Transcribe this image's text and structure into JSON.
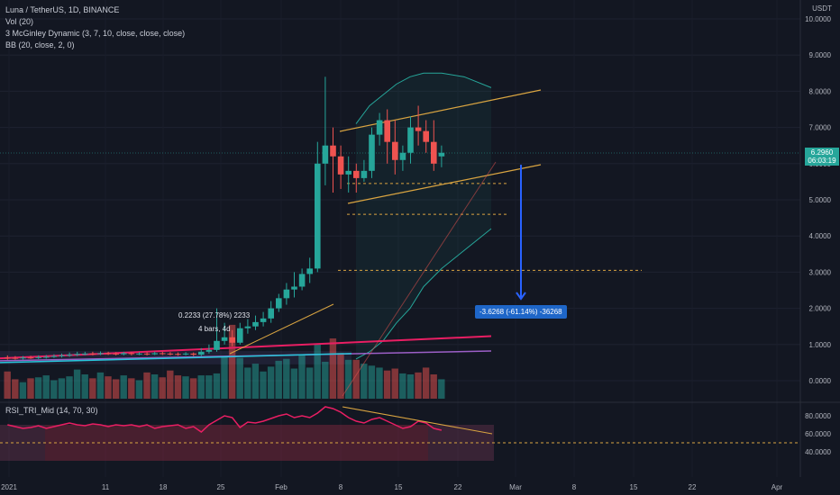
{
  "legend": {
    "title": "Luna / TetherUS, 1D, BINANCE",
    "vol": "Vol (20)",
    "mcginley": "3 McGinley Dynamic (3, 7, 10, close, close, close)",
    "bb": "BB (20, close, 2, 0)"
  },
  "price_tag": {
    "price": "6.2960",
    "countdown": "06:03:19"
  },
  "measure_label": "-3.6268 (-61.14%) -36268",
  "annotation_pct": "0.2233 (27.78%) 2233",
  "annotation_bars": "4 bars, 4d",
  "rsi_title": "RSI_TRI_Mid (14, 70, 30)",
  "colors": {
    "up": "#26a69a",
    "down": "#ef5350",
    "bg": "#131722",
    "bb": "#26a69a",
    "trend": "#d9a441",
    "rsi": "#e91e63",
    "band": "#7e3a5a"
  },
  "chart_data": {
    "type": "candlestick",
    "unit": "USDT",
    "price_axis_ticks": [
      "10.0000",
      "9.0000",
      "8.0000",
      "7.0000",
      "6.0000",
      "5.0000",
      "4.0000",
      "3.0000",
      "2.0000",
      "1.0000",
      "0.0000"
    ],
    "rsi_axis_ticks": [
      "80.0000",
      "60.0000",
      "40.0000"
    ],
    "x_tick_labels": [
      "2021",
      "11",
      "18",
      "25",
      "Feb",
      "8",
      "15",
      "22",
      "Mar",
      "8",
      "15",
      "22",
      "Apr"
    ],
    "ohlc_open": [
      0.64,
      0.63,
      0.62,
      0.64,
      0.63,
      0.65,
      0.66,
      0.68,
      0.7,
      0.72,
      0.74,
      0.75,
      0.74,
      0.76,
      0.75,
      0.73,
      0.76,
      0.74,
      0.75,
      0.73,
      0.76,
      0.75,
      0.74,
      0.73,
      0.75,
      0.72,
      0.8,
      0.85,
      1.1,
      1.2,
      1.05,
      1.45,
      1.5,
      1.62,
      1.72,
      2.0,
      2.28,
      2.52,
      2.6,
      2.95,
      3.1,
      6.0,
      6.5,
      6.2,
      5.7,
      5.8,
      5.6,
      5.8,
      6.8,
      7.2,
      6.6,
      6.1,
      6.3,
      7.0,
      6.9,
      6.6,
      6.2
    ],
    "ohlc_close": [
      0.63,
      0.62,
      0.64,
      0.63,
      0.65,
      0.66,
      0.68,
      0.7,
      0.72,
      0.74,
      0.75,
      0.74,
      0.76,
      0.75,
      0.73,
      0.76,
      0.74,
      0.75,
      0.73,
      0.76,
      0.75,
      0.74,
      0.73,
      0.75,
      0.72,
      0.8,
      0.85,
      1.1,
      1.2,
      1.05,
      1.45,
      1.5,
      1.62,
      1.72,
      2.0,
      2.28,
      2.52,
      2.6,
      2.95,
      3.1,
      6.0,
      6.5,
      6.2,
      5.7,
      5.8,
      5.6,
      5.8,
      6.8,
      7.2,
      6.6,
      6.1,
      6.3,
      7.0,
      6.9,
      6.6,
      6.0,
      6.3
    ],
    "ohlc_high": [
      0.7,
      0.68,
      0.68,
      0.69,
      0.7,
      0.71,
      0.73,
      0.75,
      0.78,
      0.8,
      0.8,
      0.8,
      0.81,
      0.8,
      0.79,
      0.8,
      0.79,
      0.79,
      0.79,
      0.8,
      0.8,
      0.79,
      0.78,
      0.79,
      0.78,
      0.9,
      1.0,
      2.0,
      1.6,
      1.4,
      1.6,
      1.7,
      1.8,
      1.9,
      2.2,
      2.4,
      2.7,
      3.0,
      3.1,
      3.4,
      6.6,
      8.4,
      7.0,
      6.5,
      6.2,
      6.0,
      6.1,
      7.0,
      7.4,
      7.5,
      7.2,
      6.5,
      7.3,
      7.6,
      7.2,
      7.2,
      6.5
    ],
    "ohlc_low": [
      0.58,
      0.58,
      0.58,
      0.6,
      0.6,
      0.61,
      0.63,
      0.64,
      0.66,
      0.68,
      0.7,
      0.7,
      0.71,
      0.71,
      0.7,
      0.7,
      0.7,
      0.71,
      0.7,
      0.71,
      0.71,
      0.7,
      0.69,
      0.7,
      0.68,
      0.68,
      0.75,
      0.8,
      1.0,
      0.95,
      1.0,
      1.3,
      1.4,
      1.5,
      1.6,
      1.9,
      2.1,
      2.3,
      2.5,
      2.7,
      3.0,
      5.4,
      5.2,
      5.3,
      5.2,
      5.2,
      5.5,
      5.6,
      6.5,
      6.0,
      5.7,
      5.8,
      6.0,
      6.5,
      6.3,
      5.8,
      5.9
    ],
    "volume_scale_0_1": [
      0.28,
      0.2,
      0.17,
      0.21,
      0.22,
      0.24,
      0.19,
      0.21,
      0.23,
      0.3,
      0.25,
      0.21,
      0.27,
      0.23,
      0.2,
      0.24,
      0.21,
      0.19,
      0.27,
      0.25,
      0.22,
      0.29,
      0.24,
      0.23,
      0.21,
      0.24,
      0.24,
      0.26,
      0.43,
      0.76,
      0.42,
      0.32,
      0.36,
      0.28,
      0.33,
      0.39,
      0.41,
      0.31,
      0.45,
      0.32,
      0.56,
      0.38,
      0.62,
      0.47,
      0.4,
      0.4,
      0.36,
      0.34,
      0.32,
      0.29,
      0.31,
      0.26,
      0.25,
      0.27,
      0.32,
      0.25,
      0.2
    ],
    "rsi_values": [
      70,
      68,
      66,
      67,
      69,
      66,
      68,
      70,
      72,
      70,
      69,
      71,
      70,
      68,
      70,
      69,
      70,
      68,
      70,
      66,
      68,
      69,
      70,
      66,
      68,
      62,
      70,
      75,
      80,
      78,
      67,
      73,
      72,
      74,
      77,
      80,
      82,
      78,
      80,
      78,
      83,
      90,
      88,
      84,
      78,
      74,
      72,
      76,
      78,
      74,
      70,
      66,
      68,
      74,
      72,
      66,
      64
    ],
    "bb_upper": [
      7.1,
      7.6,
      7.9,
      8.2,
      8.4,
      8.5,
      8.5,
      8.4,
      8.1
    ],
    "bb_lower": [
      0.6,
      0.8,
      1.1,
      1.6,
      2.0,
      2.6,
      3.1,
      3.6,
      4.2
    ],
    "ma_value": 0.75,
    "target_line": 3.05,
    "levels": [
      5.45,
      4.6
    ]
  }
}
